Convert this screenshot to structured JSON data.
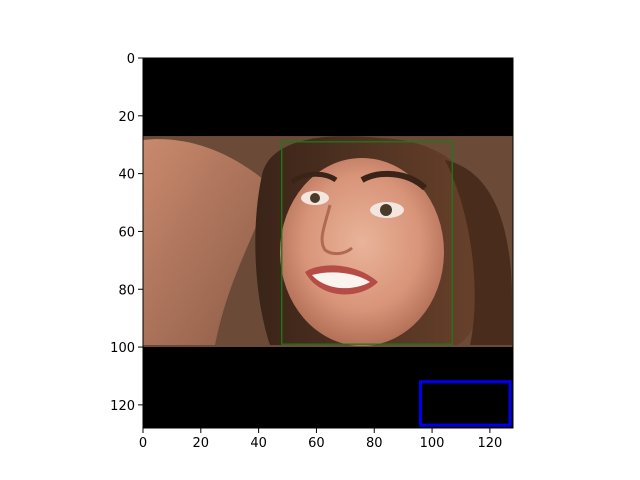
{
  "figure": {
    "description_scope": "pixel image plotted on axes with pixel-coordinate ticks",
    "x_range": [
      0,
      128
    ],
    "y_range": [
      0,
      128
    ],
    "y_inverted": true,
    "x_ticks": [
      0,
      20,
      40,
      60,
      80,
      100,
      120
    ],
    "y_ticks": [
      0,
      20,
      40,
      60,
      80,
      100,
      120
    ],
    "tick_labels_x": [
      "0",
      "20",
      "40",
      "60",
      "80",
      "100",
      "120"
    ],
    "tick_labels_y": [
      "0",
      "20",
      "40",
      "60",
      "80",
      "100",
      "120"
    ],
    "photo_band": {
      "y_start": 27,
      "y_end": 100
    },
    "boxes": [
      {
        "name": "face-box",
        "color": "#1a7a1a",
        "x0": 48,
        "y0": 29,
        "x1": 107,
        "y1": 99
      },
      {
        "name": "blue-box",
        "color": "#0000ee",
        "x0": 96,
        "y0": 112,
        "x1": 127,
        "y1": 127
      }
    ],
    "colors": {
      "background": "#000000",
      "axis": "#000000"
    }
  }
}
